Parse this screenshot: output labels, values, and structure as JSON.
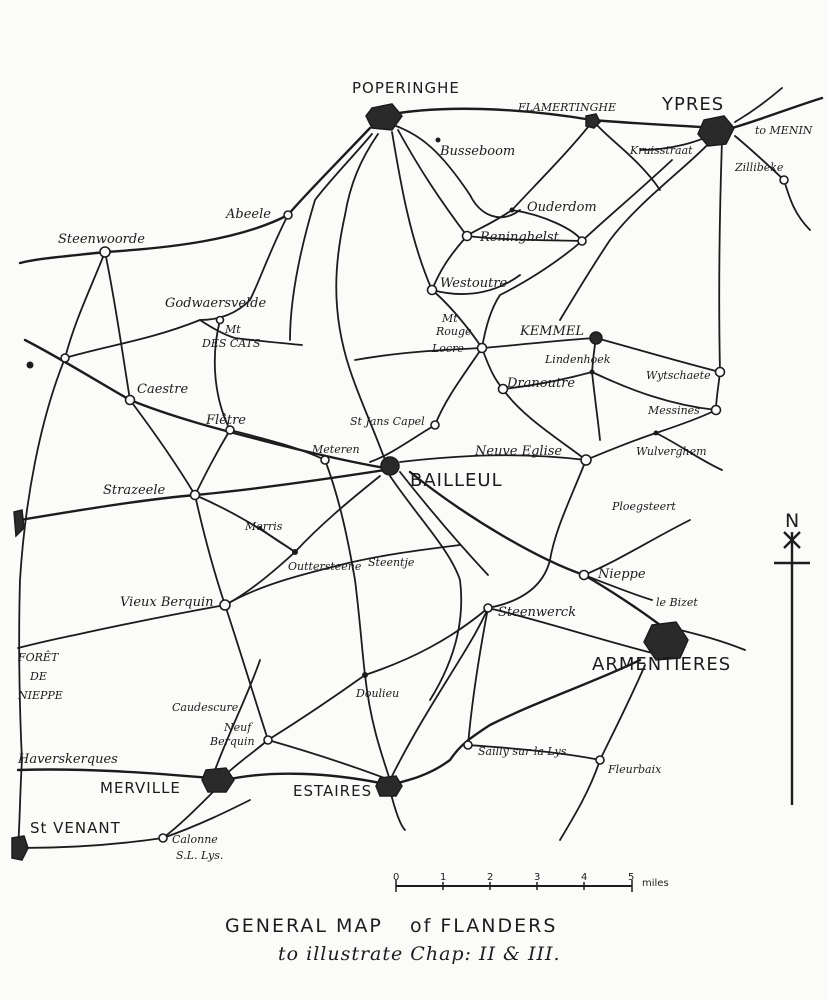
{
  "map": {
    "title": "GENERAL MAP",
    "title_of": "of FLANDERS",
    "subtitle": "to illustrate  Chap: II & III.",
    "compass_label": "N",
    "scale": {
      "ticks": [
        "0",
        "1",
        "2",
        "3",
        "4",
        "5"
      ],
      "unit": "miles"
    },
    "places": {
      "poperinghe": "POPERINGHE",
      "flamertinghe": "FLAMERTINGHE",
      "ypres": "YPRES",
      "to_menin": "to MENIN",
      "busseboom": "Busseboom",
      "kruisstraat": "Kruisstraat",
      "zillibeke": "Zillibeke",
      "ouderdom": "Ouderdom",
      "abeele": "Abeele",
      "reninghelst": "Reninghelst",
      "steenwoorde": "Steenwoorde",
      "westoutre": "Westoutre",
      "godwaersvelde": "Godwaersvelde",
      "mt_des_cats_1": "Mt",
      "mt_des_cats_2": "DES CATS",
      "mt_rouge_1": "Mt",
      "mt_rouge_2": "Rouge",
      "locre": "Locre",
      "kemmel": "KEMMEL",
      "lindenhoek": "Lindenhoek",
      "wytschaete": "Wytschaete",
      "dranoutre": "Dranoutre",
      "caestre": "Caestre",
      "st_jans_capel": "St Jans Capel",
      "messines": "Messines",
      "fletre": "Flêtre",
      "meteren": "Meteren",
      "neuve_eglise": "Neuve Eglise",
      "wulverghem": "Wulverghem",
      "bailleul": "BAILLEUL",
      "strazeele": "Strazeele",
      "ploegsteert": "Ploegsteert",
      "merris": "Merris",
      "outtersteene": "Outtersteene",
      "steentje": "Steentje",
      "nieppe": "Nieppe",
      "le_bizet": "le Bizet",
      "vieux_berquin": "Vieux Berquin",
      "steenwerck": "Steenwerck",
      "foret_1": "FORÊT",
      "foret_2": "DE",
      "foret_3": "NIEPPE",
      "armentieres": "ARMENTIERES",
      "doulieu": "Doulieu",
      "caudescure": "Caudescure",
      "neuf_berquin_1": "Neuf",
      "neuf_berquin_2": "Berquin",
      "haverskerques": "Haverskerques",
      "sailly": "Sailly sur la Lys",
      "fleurbaix": "Fleurbaix",
      "merville": "MERVILLE",
      "estaires": "ESTAIRES",
      "st_venant": "St VENANT",
      "calonne_1": "Calonne",
      "calonne_2": "S.L. Lys."
    }
  }
}
